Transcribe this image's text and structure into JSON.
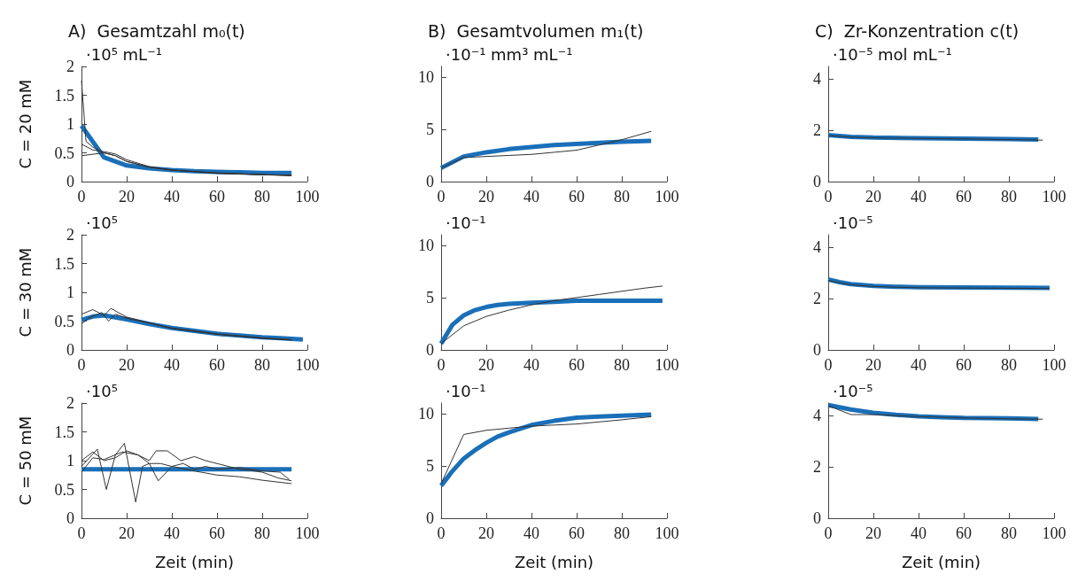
{
  "chart_data": [
    {
      "type": "line",
      "title": "A)  Gesamtzahl m₀(t)",
      "ylabel": "C = 20 mM",
      "annotations": [
        "·10⁵ mL⁻¹"
      ],
      "xlim": [
        0,
        100
      ],
      "xticks": [
        0,
        20,
        40,
        60,
        80,
        100
      ],
      "ylim": [
        0,
        2
      ],
      "yticks": [
        0,
        0.5,
        1,
        1.5,
        2
      ],
      "series": [
        {
          "color": "#333333",
          "x": [
            0,
            2,
            5,
            10,
            15,
            20,
            30,
            40,
            60,
            80,
            93
          ],
          "values": [
            1.75,
            0.7,
            0.6,
            0.5,
            0.45,
            0.35,
            0.25,
            0.2,
            0.14,
            0.12,
            0.11
          ]
        },
        {
          "color": "#333333",
          "x": [
            0,
            5,
            10,
            15,
            20,
            30,
            40,
            60,
            80,
            93
          ],
          "values": [
            0.65,
            0.55,
            0.52,
            0.48,
            0.38,
            0.26,
            0.2,
            0.15,
            0.12,
            0.11
          ]
        },
        {
          "color": "#333333",
          "x": [
            0,
            10,
            15,
            20,
            30,
            40,
            60,
            80,
            93
          ],
          "values": [
            0.45,
            0.5,
            0.45,
            0.35,
            0.25,
            0.2,
            0.15,
            0.12,
            0.1
          ]
        },
        {
          "color": "#1a6fb8",
          "x": [
            0,
            10,
            20,
            30,
            40,
            50,
            60,
            70,
            80,
            93
          ],
          "values": [
            0.97,
            0.42,
            0.28,
            0.23,
            0.2,
            0.18,
            0.17,
            0.16,
            0.15,
            0.15
          ]
        }
      ]
    },
    {
      "type": "line",
      "title": "B)  Gesamtvolumen m₁(t)",
      "annotations": [
        "·10⁻¹ mm³ mL⁻¹"
      ],
      "xlim": [
        0,
        100
      ],
      "xticks": [
        0,
        20,
        40,
        60,
        80,
        100
      ],
      "ylim": [
        0,
        11
      ],
      "yticks": [
        0,
        5,
        10
      ],
      "series": [
        {
          "color": "#333333",
          "x": [
            0,
            10,
            20,
            30,
            40,
            50,
            60,
            70,
            80,
            93
          ],
          "values": [
            1.3,
            2.3,
            2.4,
            2.5,
            2.6,
            2.8,
            3.0,
            3.5,
            4.0,
            4.8
          ]
        },
        {
          "color": "#1a6fb8",
          "x": [
            0,
            10,
            20,
            30,
            40,
            50,
            60,
            70,
            80,
            93
          ],
          "values": [
            1.3,
            2.4,
            2.8,
            3.1,
            3.3,
            3.5,
            3.6,
            3.7,
            3.8,
            3.9
          ]
        }
      ]
    },
    {
      "type": "line",
      "title": "C)  Zr-Konzentration c(t)",
      "annotations": [
        "·10⁻⁵ mol mL⁻¹"
      ],
      "xlim": [
        0,
        100
      ],
      "xticks": [
        0,
        20,
        40,
        60,
        80,
        100
      ],
      "ylim": [
        0,
        4.5
      ],
      "yticks": [
        0,
        2,
        4
      ],
      "series": [
        {
          "color": "#333333",
          "x": [
            0,
            10,
            20,
            40,
            60,
            80,
            95
          ],
          "values": [
            1.8,
            1.74,
            1.71,
            1.69,
            1.67,
            1.64,
            1.62
          ]
        },
        {
          "color": "#1a6fb8",
          "x": [
            0,
            10,
            20,
            40,
            60,
            80,
            93
          ],
          "values": [
            1.82,
            1.75,
            1.72,
            1.7,
            1.68,
            1.66,
            1.64
          ]
        }
      ]
    },
    {
      "type": "line",
      "ylabel": "C = 30 mM",
      "annotations": [
        "·10⁵"
      ],
      "xlim": [
        0,
        100
      ],
      "xticks": [
        0,
        20,
        40,
        60,
        80,
        100
      ],
      "ylim": [
        0,
        2
      ],
      "yticks": [
        0,
        0.5,
        1,
        1.5,
        2
      ],
      "series": [
        {
          "color": "#333333",
          "x": [
            0,
            5,
            10,
            13,
            20,
            40,
            60,
            80,
            93
          ],
          "values": [
            0.62,
            0.7,
            0.6,
            0.72,
            0.57,
            0.37,
            0.27,
            0.2,
            0.17
          ]
        },
        {
          "color": "#333333",
          "x": [
            0,
            3,
            6,
            9,
            12,
            15,
            20,
            40,
            60,
            80,
            93
          ],
          "values": [
            0.45,
            0.55,
            0.6,
            0.65,
            0.5,
            0.62,
            0.55,
            0.38,
            0.28,
            0.21,
            0.18
          ]
        },
        {
          "color": "#1a6fb8",
          "x": [
            0,
            5,
            10,
            20,
            30,
            40,
            50,
            60,
            70,
            80,
            90,
            98
          ],
          "values": [
            0.52,
            0.58,
            0.6,
            0.53,
            0.45,
            0.38,
            0.33,
            0.28,
            0.25,
            0.22,
            0.2,
            0.18
          ]
        }
      ]
    },
    {
      "type": "line",
      "annotations": [
        "·10⁻¹"
      ],
      "xlim": [
        0,
        100
      ],
      "xticks": [
        0,
        20,
        40,
        60,
        80,
        100
      ],
      "ylim": [
        0,
        11
      ],
      "yticks": [
        0,
        5,
        10
      ],
      "series": [
        {
          "color": "#333333",
          "x": [
            0,
            10,
            20,
            30,
            40,
            50,
            60,
            70,
            80,
            90,
            98
          ],
          "values": [
            0.6,
            2.3,
            3.2,
            3.8,
            4.3,
            4.7,
            5.0,
            5.3,
            5.6,
            5.9,
            6.1
          ]
        },
        {
          "color": "#1a6fb8",
          "x": [
            0,
            5,
            10,
            15,
            20,
            25,
            30,
            40,
            50,
            60,
            70,
            80,
            90,
            98
          ],
          "values": [
            0.6,
            2.4,
            3.3,
            3.8,
            4.1,
            4.3,
            4.4,
            4.5,
            4.6,
            4.7,
            4.7,
            4.7,
            4.7,
            4.7
          ]
        }
      ]
    },
    {
      "type": "line",
      "annotations": [
        "·10⁻⁵"
      ],
      "xlim": [
        0,
        100
      ],
      "xticks": [
        0,
        20,
        40,
        60,
        80,
        100
      ],
      "ylim": [
        0,
        4.5
      ],
      "yticks": [
        0,
        2,
        4
      ],
      "series": [
        {
          "color": "#333333",
          "x": [
            0,
            5,
            10,
            20,
            30,
            40,
            60,
            80,
            98
          ],
          "values": [
            2.72,
            2.62,
            2.55,
            2.48,
            2.45,
            2.43,
            2.42,
            2.41,
            2.4
          ]
        },
        {
          "color": "#1a6fb8",
          "x": [
            0,
            5,
            10,
            20,
            30,
            40,
            60,
            80,
            98
          ],
          "values": [
            2.75,
            2.65,
            2.57,
            2.5,
            2.47,
            2.45,
            2.44,
            2.43,
            2.42
          ]
        }
      ]
    },
    {
      "type": "line",
      "ylabel": "C = 50 mM",
      "xlabel": "Zeit (min)",
      "annotations": [
        "·10⁵"
      ],
      "xlim": [
        0,
        100
      ],
      "xticks": [
        0,
        20,
        40,
        60,
        80,
        100
      ],
      "ylim": [
        0,
        2
      ],
      "yticks": [
        0,
        0.5,
        1,
        1.5,
        2
      ],
      "series": [
        {
          "color": "#333333",
          "x": [
            0,
            7,
            11,
            15,
            19,
            24,
            27,
            30,
            34,
            40,
            45,
            50,
            55,
            60,
            70,
            80,
            88,
            92
          ],
          "values": [
            0.9,
            1.2,
            0.5,
            1.1,
            1.3,
            0.28,
            0.9,
            0.95,
            0.65,
            0.9,
            0.95,
            0.85,
            0.9,
            0.85,
            0.88,
            0.82,
            0.8,
            0.67
          ]
        },
        {
          "color": "#333333",
          "x": [
            0,
            5,
            10,
            15,
            20,
            25,
            30,
            33,
            38,
            44,
            50,
            55,
            60,
            70,
            80,
            87,
            93
          ],
          "values": [
            1.0,
            1.15,
            1.0,
            1.05,
            1.17,
            1.1,
            1.0,
            1.17,
            1.17,
            1.0,
            1.07,
            1.0,
            0.95,
            0.85,
            0.8,
            0.7,
            0.65
          ]
        },
        {
          "color": "#333333",
          "x": [
            0,
            5,
            10,
            18,
            25,
            30,
            35,
            40,
            50,
            60,
            70,
            80,
            93
          ],
          "values": [
            0.8,
            1.05,
            1.02,
            1.15,
            1.1,
            0.95,
            0.95,
            0.9,
            0.82,
            0.75,
            0.72,
            0.66,
            0.6
          ]
        },
        {
          "color": "#1a6fb8",
          "x": [
            0,
            93
          ],
          "values": [
            0.85,
            0.85
          ]
        }
      ]
    },
    {
      "type": "line",
      "xlabel": "Zeit (min)",
      "annotations": [
        "·10⁻¹"
      ],
      "xlim": [
        0,
        100
      ],
      "xticks": [
        0,
        20,
        40,
        60,
        80,
        100
      ],
      "ylim": [
        0,
        11
      ],
      "yticks": [
        0,
        5,
        10
      ],
      "series": [
        {
          "color": "#333333",
          "x": [
            0,
            10,
            20,
            30,
            40,
            60,
            80,
            93
          ],
          "values": [
            3.3,
            8.0,
            8.4,
            8.6,
            8.8,
            9.0,
            9.4,
            9.7
          ]
        },
        {
          "color": "#1a6fb8",
          "x": [
            0,
            5,
            10,
            15,
            20,
            25,
            30,
            40,
            50,
            60,
            70,
            80,
            93
          ],
          "values": [
            3.1,
            4.5,
            5.7,
            6.5,
            7.2,
            7.8,
            8.2,
            8.9,
            9.3,
            9.6,
            9.7,
            9.8,
            9.9
          ]
        }
      ]
    },
    {
      "type": "line",
      "xlabel": "Zeit (min)",
      "annotations": [
        "·10⁻⁵"
      ],
      "xlim": [
        0,
        100
      ],
      "xticks": [
        0,
        20,
        40,
        60,
        80,
        100
      ],
      "ylim": [
        0,
        4.5
      ],
      "yticks": [
        0,
        2,
        4
      ],
      "series": [
        {
          "color": "#333333",
          "x": [
            0,
            10,
            20,
            40,
            60,
            80,
            95
          ],
          "values": [
            4.4,
            4.05,
            4.05,
            3.97,
            3.92,
            3.88,
            3.87
          ]
        },
        {
          "color": "#1a6fb8",
          "x": [
            0,
            10,
            20,
            30,
            40,
            50,
            60,
            80,
            93
          ],
          "values": [
            4.42,
            4.25,
            4.12,
            4.04,
            3.98,
            3.95,
            3.92,
            3.9,
            3.88
          ]
        }
      ]
    }
  ]
}
